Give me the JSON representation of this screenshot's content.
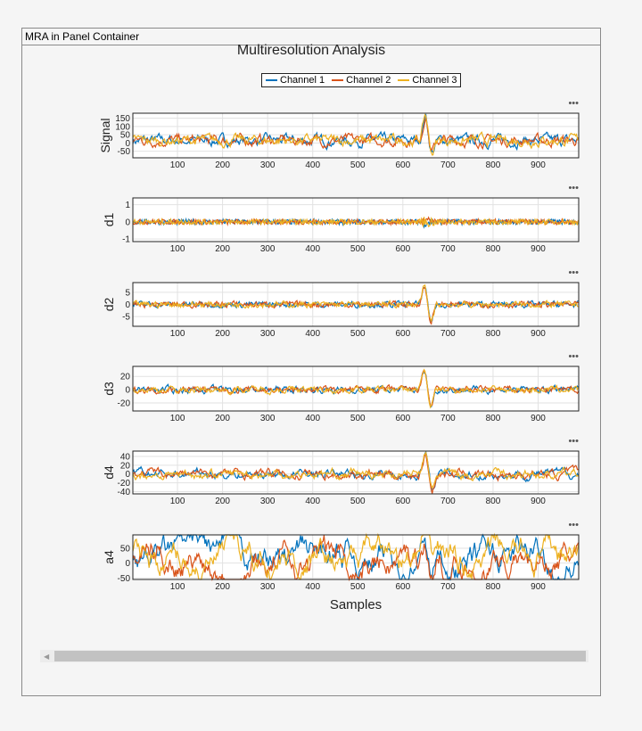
{
  "panel": {
    "title": "MRA in Panel Container"
  },
  "figure": {
    "title": "Multiresolution Analysis",
    "xlabel": "Samples",
    "more_icon": "ellipsis-icon"
  },
  "legend": [
    {
      "name": "Channel 1",
      "color": "#0072bd"
    },
    {
      "name": "Channel 2",
      "color": "#d95319"
    },
    {
      "name": "Channel 3",
      "color": "#edb120"
    }
  ],
  "chart_data": [
    {
      "type": "line",
      "ylabel": "Signal",
      "xlim": [
        1,
        990
      ],
      "ylim": [
        -90,
        180
      ],
      "yticks": [
        -50,
        0,
        50,
        100,
        150
      ],
      "xticks": [
        100,
        200,
        300,
        400,
        500,
        600,
        700,
        800,
        900
      ],
      "grid": true,
      "peak": {
        "x": 650,
        "y": 170,
        "min_y": -85
      }
    },
    {
      "type": "line",
      "ylabel": "d1",
      "xlim": [
        1,
        990
      ],
      "ylim": [
        -1.15,
        1.4
      ],
      "yticks": [
        -1,
        0,
        1
      ],
      "xticks": [
        100,
        200,
        300,
        400,
        500,
        600,
        700,
        800,
        900
      ],
      "grid": true
    },
    {
      "type": "line",
      "ylabel": "d2",
      "xlim": [
        1,
        990
      ],
      "ylim": [
        -9,
        9
      ],
      "yticks": [
        -5,
        0,
        5
      ],
      "xticks": [
        100,
        200,
        300,
        400,
        500,
        600,
        700,
        800,
        900
      ],
      "grid": true,
      "peak": {
        "x": 648,
        "y": 8,
        "min_y": -8
      }
    },
    {
      "type": "line",
      "ylabel": "d3",
      "xlim": [
        1,
        990
      ],
      "ylim": [
        -32,
        35
      ],
      "yticks": [
        -20,
        0,
        20
      ],
      "xticks": [
        100,
        200,
        300,
        400,
        500,
        600,
        700,
        800,
        900
      ],
      "grid": true,
      "peak": {
        "x": 648,
        "y": 33,
        "min_y": -28
      }
    },
    {
      "type": "line",
      "ylabel": "d4",
      "xlim": [
        1,
        990
      ],
      "ylim": [
        -45,
        52
      ],
      "yticks": [
        -40,
        -20,
        0,
        20,
        40
      ],
      "xticks": [
        100,
        200,
        300,
        400,
        500,
        600,
        700,
        800,
        900
      ],
      "grid": true,
      "peak": {
        "x": 650,
        "y": 50,
        "min_y": -42
      }
    },
    {
      "type": "line",
      "ylabel": "a4",
      "xlim": [
        1,
        990
      ],
      "ylim": [
        -55,
        95
      ],
      "yticks": [
        -50,
        0,
        50
      ],
      "xticks": [
        100,
        200,
        300,
        400,
        500,
        600,
        700,
        800,
        900
      ],
      "grid": true,
      "peak": {
        "x": 648,
        "y": 90,
        "min_y": -50
      }
    }
  ]
}
